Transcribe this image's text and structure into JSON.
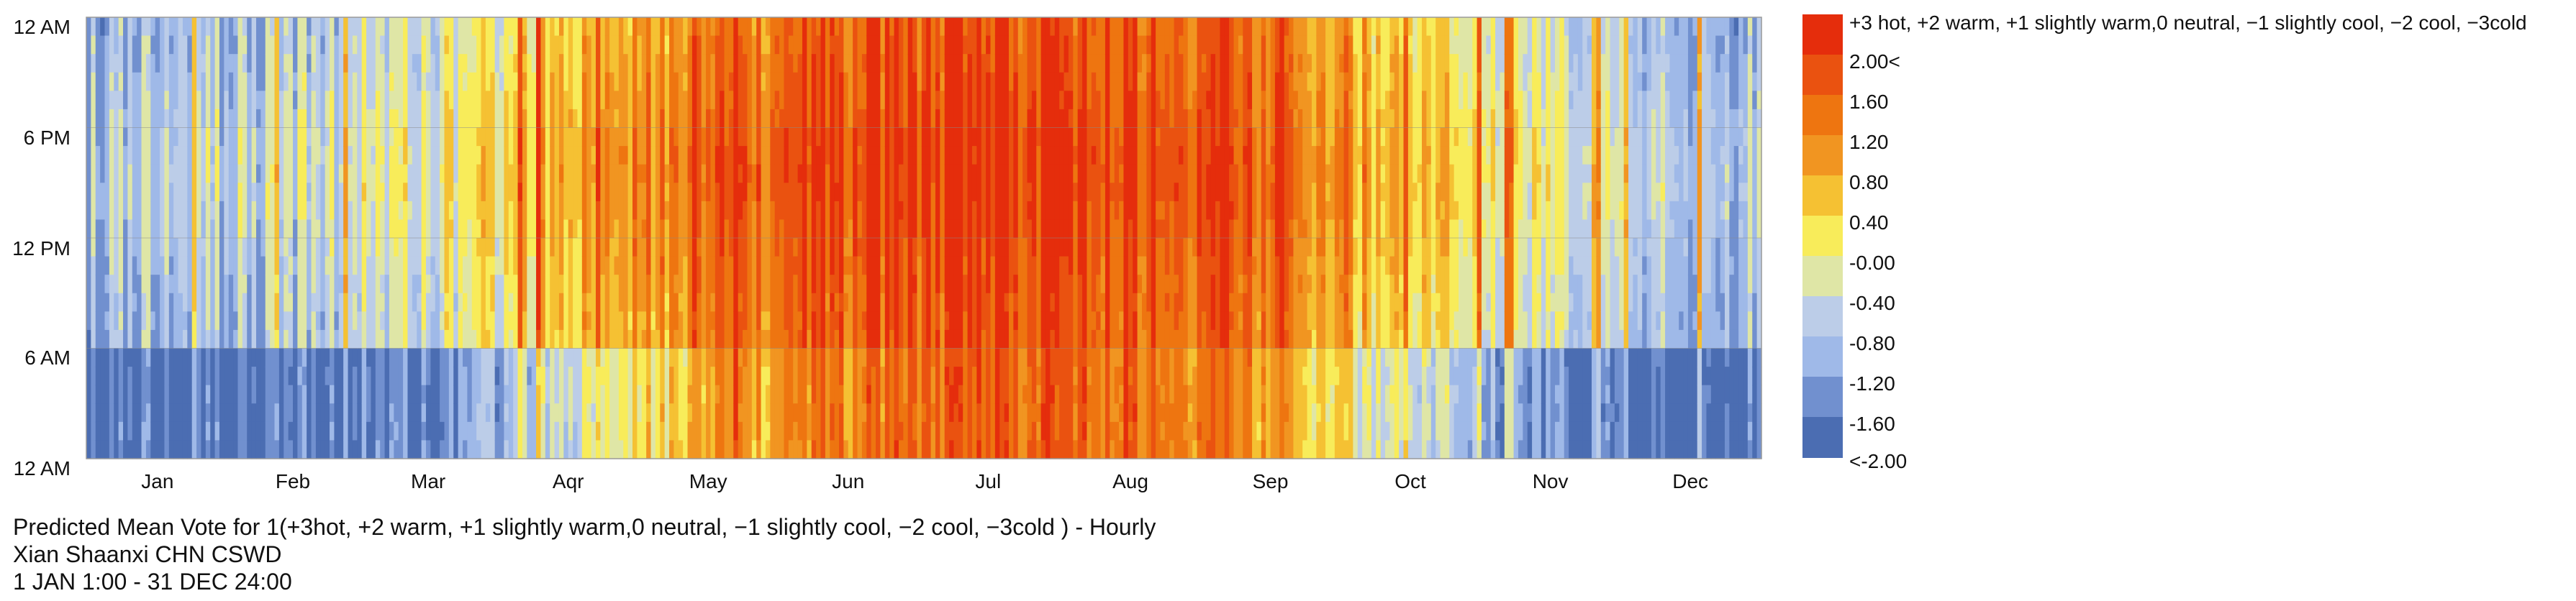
{
  "chart_data": {
    "type": "heatmap",
    "title": "Predicted Mean Vote for 1(+3hot, +2 warm, +1 slightly warm,0 neutral, −1 slightly cool, −2 cool, −3cold ) - Hourly",
    "location": "Xian Shaanxi CHN CSWD",
    "period": "1 JAN 1:00 - 31 DEC 24:00",
    "x_axis": {
      "label": "",
      "tick_labels": [
        "Jan",
        "Feb",
        "Mar",
        "Aqr",
        "May",
        "Jun",
        "Jul",
        "Aug",
        "Sep",
        "Oct",
        "Nov",
        "Dec"
      ]
    },
    "y_axis": {
      "label": "",
      "tick_labels": [
        "12 AM",
        "6 PM",
        "12 PM",
        "6 AM",
        "12 AM"
      ]
    },
    "legend": {
      "header": "+3 hot, +2 warm, +1 slightly warm,0 neutral, −1 slightly cool, −2 cool, −3cold",
      "labels": [
        "2.00<",
        "1.60",
        "1.20",
        "0.80",
        "0.40",
        "-0.00",
        "-0.40",
        "-0.80",
        "-1.20",
        "-1.60",
        "<-2.00"
      ],
      "colors": [
        "#e52d0c",
        "#ea5210",
        "#ee7510",
        "#f19521",
        "#f5c133",
        "#f8ec5a",
        "#dfe6a6",
        "#bccde8",
        "#9fb9e8",
        "#7190cf",
        "#4b6db2"
      ]
    },
    "value_range": [
      -2.0,
      2.0
    ],
    "columns_per_year": 365,
    "rows_per_day": 24,
    "monthly_profile": {
      "months": [
        "Jan",
        "Feb",
        "Mar",
        "Aqr",
        "May",
        "Jun",
        "Jul",
        "Aug",
        "Sep",
        "Oct",
        "Nov",
        "Dec"
      ],
      "day_mean": [
        -1.2,
        -1.0,
        -0.6,
        0.3,
        1.0,
        1.3,
        1.5,
        1.5,
        0.9,
        0.1,
        -0.7,
        -1.2
      ],
      "night_mean": [
        -2.0,
        -2.0,
        -1.7,
        -0.6,
        0.6,
        1.0,
        1.4,
        1.4,
        0.6,
        -0.6,
        -1.8,
        -2.0
      ]
    }
  }
}
